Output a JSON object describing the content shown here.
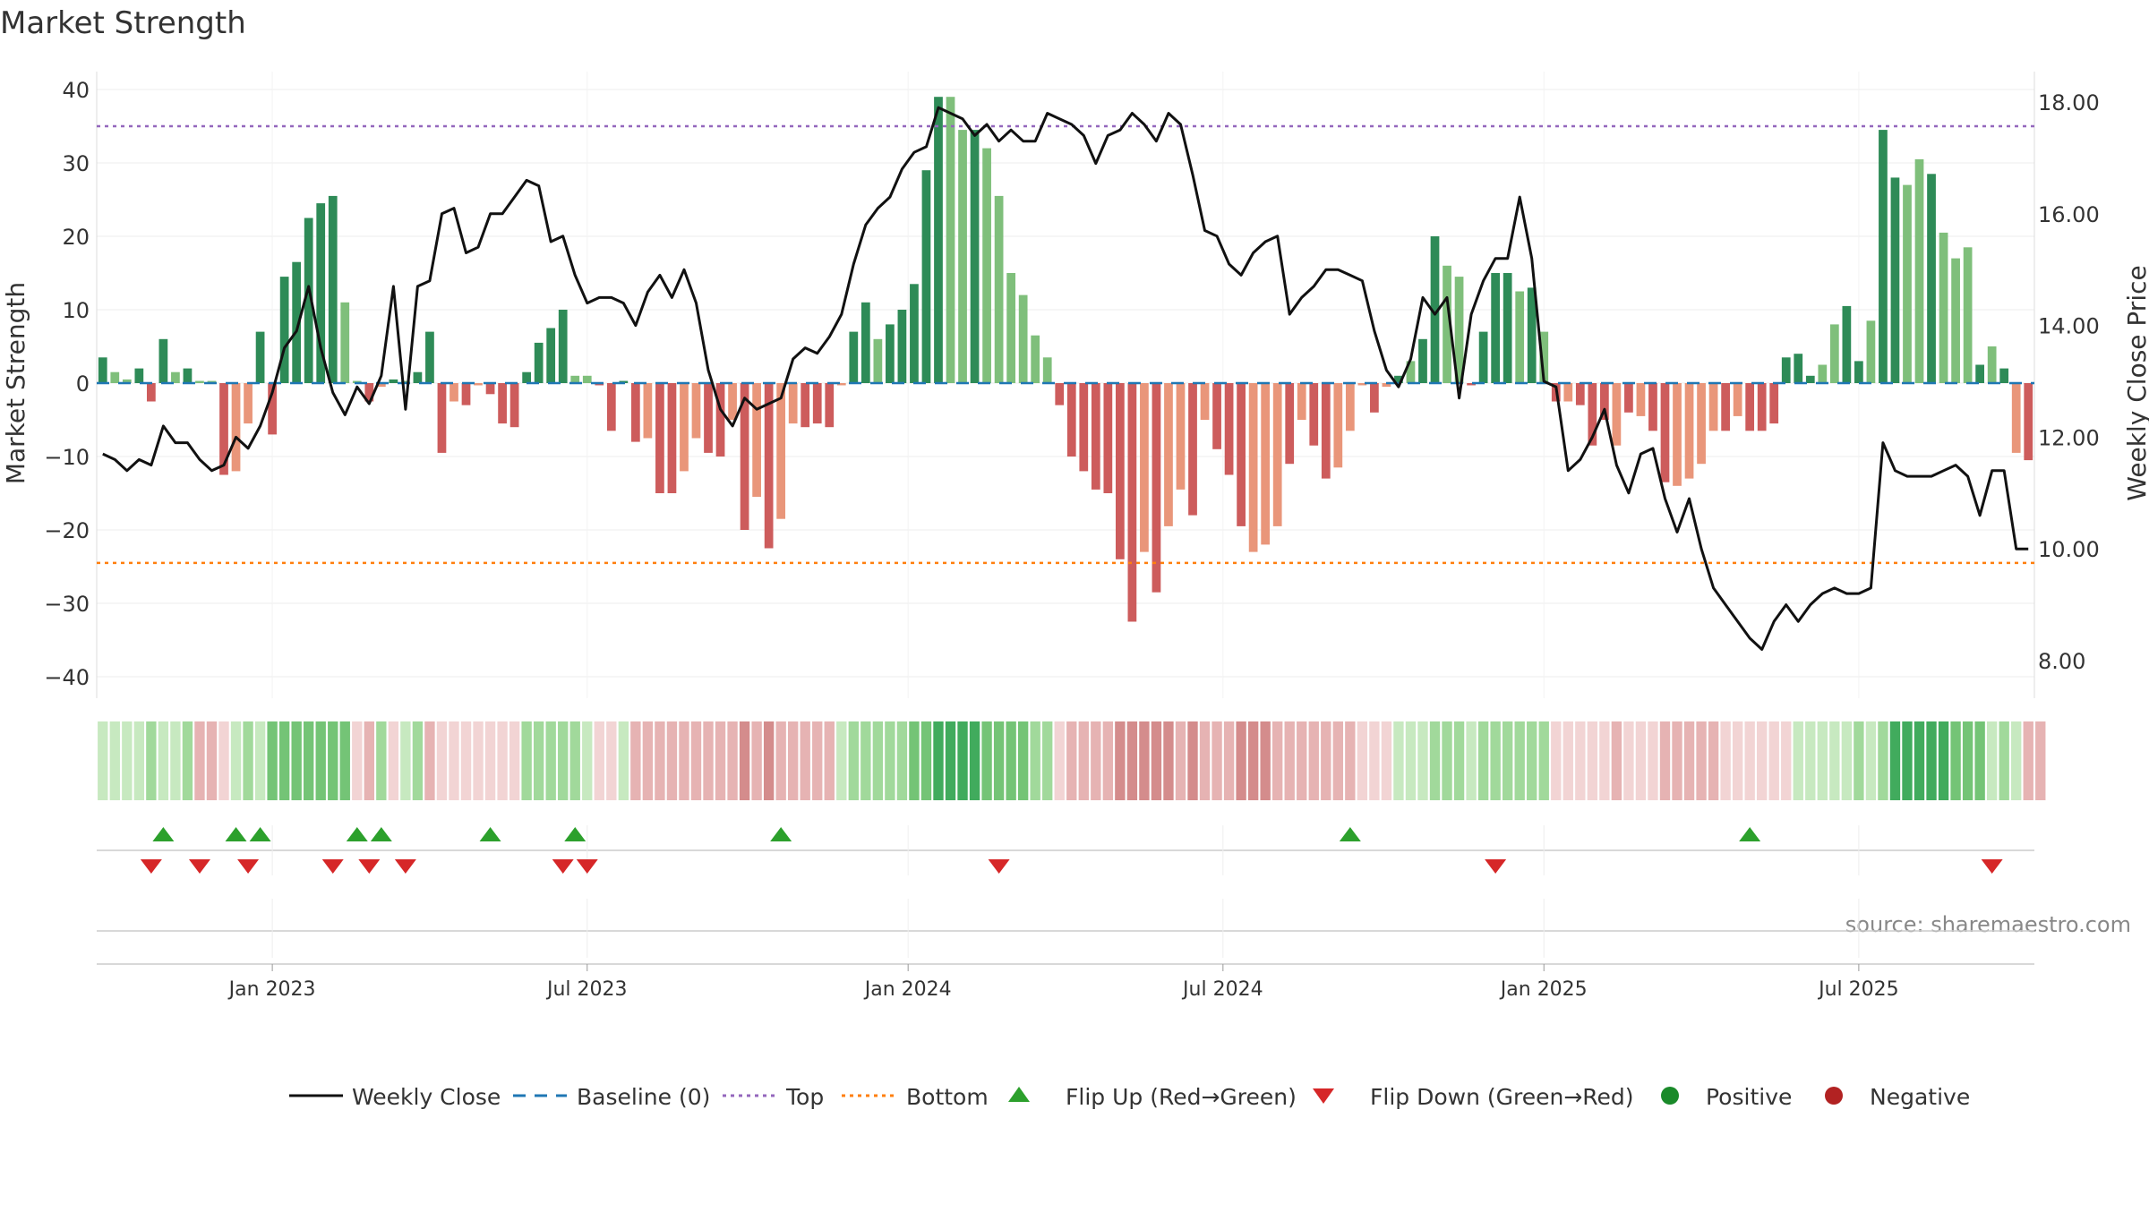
{
  "chart_data": {
    "type": "bar",
    "title": "Market Strength",
    "ylabel_left": "Market Strength",
    "ylabel_right": "Weekly Close Price",
    "ylim_left": [
      -44,
      42
    ],
    "ylim_right": [
      7.0,
      18.6
    ],
    "yticks_left": [
      "40",
      "30",
      "20",
      "10",
      "0",
      "−10",
      "−20",
      "−30",
      "−40"
    ],
    "yticks_left_values": [
      40,
      30,
      20,
      10,
      0,
      -10,
      -20,
      -30,
      -40
    ],
    "yticks_right": [
      "18.00",
      "16.00",
      "14.00",
      "12.00",
      "10.00",
      "8.00"
    ],
    "yticks_right_values": [
      18,
      16,
      14,
      12,
      10,
      8
    ],
    "x_tick_labels": [
      "Jan 2023",
      "Jul 2023",
      "Jan 2024",
      "Jul 2024",
      "Jan 2025",
      "Jul 2025"
    ],
    "x_tick_weeks": [
      14.5,
      40.5,
      67,
      93,
      119.5,
      145.5
    ],
    "top_line": 35,
    "bottom_line": -24.5,
    "source": "source: sharemaestro.com",
    "legend": [
      "Weekly Close",
      "Baseline (0)",
      "Top",
      "Bottom",
      "Flip Up (Red→Green)",
      "Flip Down (Green→Red)",
      "Positive",
      "Negative"
    ],
    "colors": {
      "dark_green": "#2e8b57",
      "light_green": "#7fbf7b",
      "dark_red": "#cd5c5c",
      "light_red": "#e9967a",
      "price_line": "#111111",
      "baseline": "#1f77b4",
      "top": "#9467bd",
      "bottom": "#ff7f0e",
      "flip_up": "#2ca02c",
      "flip_down": "#d62728",
      "positive": "#1a8a2a",
      "negative": "#b22222"
    },
    "strength": [
      3.5,
      1.5,
      0.5,
      2,
      -2.5,
      6,
      1.5,
      2,
      0.3,
      0.3,
      -12.5,
      -12,
      -5.5,
      7,
      -7,
      14.5,
      16.5,
      22.5,
      24.5,
      25.5,
      11,
      0.3,
      -2.5,
      -0.5,
      0.5,
      0.3,
      1.5,
      7,
      -9.5,
      -2.5,
      -3,
      -0.3,
      -1.5,
      -5.5,
      -6,
      1.5,
      5.5,
      7.5,
      10,
      1,
      1,
      -0.3,
      -6.5,
      0.3,
      -8,
      -7.5,
      -15,
      -15,
      -12,
      -7.5,
      -9.5,
      -10,
      -5,
      -20,
      -15.5,
      -22.5,
      -18.5,
      -5.5,
      -6,
      -5.5,
      -6,
      -0.3,
      7,
      11,
      6,
      8,
      10,
      13.5,
      29,
      39,
      39,
      34.5,
      34.5,
      32,
      25.5,
      15,
      12,
      6.5,
      3.5,
      -3,
      -10,
      -12,
      -14.5,
      -15,
      -24,
      -32.5,
      -23,
      -28.5,
      -19.5,
      -14.5,
      -18,
      -5,
      -9,
      -12.5,
      -19.5,
      -23,
      -22,
      -19.5,
      -11,
      -5,
      -8.5,
      -13,
      -11.5,
      -6.5,
      -0.3,
      -4,
      -0.5,
      1,
      3,
      6,
      20,
      16,
      14.5,
      -0.3,
      7,
      15,
      15,
      12.5,
      13,
      7,
      -2.5,
      -2.5,
      -3,
      -8.5,
      -5,
      -8.5,
      -4,
      -4.5,
      -6.5,
      -13.5,
      -14,
      -13,
      -11,
      -6.5,
      -6.5,
      -4.5,
      -6.5,
      -6.5,
      -5.5,
      3.5,
      4,
      1,
      2.5,
      8,
      10.5,
      3,
      8.5,
      34.5,
      28,
      27,
      30.5,
      28.5,
      20.5,
      17,
      18.5,
      2.5,
      5,
      2,
      -9.5,
      -10.5
    ],
    "strength_shade": [
      "d",
      "l",
      "l",
      "d",
      "d",
      "d",
      "l",
      "d",
      "l",
      "l",
      "d",
      "l",
      "l",
      "d",
      "d",
      "d",
      "d",
      "d",
      "d",
      "d",
      "l",
      "l",
      "d",
      "l",
      "d",
      "l",
      "d",
      "d",
      "d",
      "l",
      "d",
      "l",
      "d",
      "d",
      "d",
      "d",
      "d",
      "d",
      "d",
      "l",
      "l",
      "d",
      "d",
      "d",
      "d",
      "l",
      "d",
      "d",
      "l",
      "l",
      "d",
      "d",
      "l",
      "d",
      "l",
      "d",
      "l",
      "l",
      "d",
      "d",
      "d",
      "l",
      "d",
      "d",
      "l",
      "d",
      "d",
      "d",
      "d",
      "d",
      "l",
      "l",
      "d",
      "l",
      "l",
      "l",
      "l",
      "l",
      "l",
      "d",
      "d",
      "d",
      "d",
      "d",
      "d",
      "d",
      "l",
      "d",
      "l",
      "l",
      "d",
      "l",
      "d",
      "d",
      "d",
      "l",
      "l",
      "l",
      "d",
      "l",
      "d",
      "d",
      "l",
      "l",
      "l",
      "d",
      "l",
      "d",
      "l",
      "d",
      "d",
      "l",
      "l",
      "d",
      "d",
      "d",
      "d",
      "l",
      "d",
      "l",
      "d",
      "l",
      "d",
      "d",
      "d",
      "l",
      "d",
      "l",
      "d",
      "d",
      "l",
      "l",
      "l",
      "l",
      "d",
      "l",
      "d",
      "d",
      "d",
      "d",
      "d",
      "d",
      "l",
      "l",
      "d",
      "d",
      "l",
      "d",
      "d",
      "l",
      "l",
      "d",
      "l",
      "l",
      "l",
      "d",
      "l",
      "d",
      "l",
      "d",
      "d"
    ],
    "weekly_close": [
      11.7,
      11.6,
      11.4,
      11.6,
      11.5,
      12.2,
      11.9,
      11.9,
      11.6,
      11.4,
      11.5,
      12.0,
      11.8,
      12.2,
      12.8,
      13.6,
      13.9,
      14.7,
      13.6,
      12.8,
      12.4,
      12.9,
      12.6,
      13.1,
      14.7,
      12.5,
      14.7,
      14.8,
      16.0,
      16.1,
      15.3,
      15.4,
      16.0,
      16.0,
      16.3,
      16.6,
      16.5,
      15.5,
      15.6,
      14.9,
      14.4,
      14.5,
      14.5,
      14.4,
      14.0,
      14.6,
      14.9,
      14.5,
      15.0,
      14.4,
      13.2,
      12.5,
      12.2,
      12.7,
      12.5,
      12.6,
      12.7,
      13.4,
      13.6,
      13.5,
      13.8,
      14.2,
      15.1,
      15.8,
      16.1,
      16.3,
      16.8,
      17.1,
      17.2,
      17.9,
      17.8,
      17.7,
      17.4,
      17.6,
      17.3,
      17.5,
      17.3,
      17.3,
      17.8,
      17.7,
      17.6,
      17.4,
      16.9,
      17.4,
      17.5,
      17.8,
      17.6,
      17.3,
      17.8,
      17.6,
      16.7,
      15.7,
      15.6,
      15.1,
      14.9,
      15.3,
      15.5,
      15.6,
      14.2,
      14.5,
      14.7,
      15.0,
      15.0,
      14.9,
      14.8,
      13.9,
      13.2,
      12.9,
      13.4,
      14.5,
      14.2,
      14.5,
      12.7,
      14.2,
      14.8,
      15.2,
      15.2,
      16.3,
      15.2,
      13.0,
      12.9,
      11.4,
      11.6,
      12.0,
      12.5,
      11.5,
      11.0,
      11.7,
      11.8,
      10.9,
      10.3,
      10.9,
      10.0,
      9.3,
      9.0,
      8.7,
      8.4,
      8.2,
      8.7,
      9.0,
      8.7,
      9.0,
      9.2,
      9.3,
      9.2,
      9.2,
      9.3,
      11.9,
      11.4,
      11.3,
      11.3,
      11.3,
      11.4,
      11.5,
      11.3,
      10.6,
      11.4,
      11.4,
      10.0,
      10.0
    ],
    "flip_up_weeks": [
      5,
      11,
      13,
      21,
      23,
      32,
      39,
      56,
      103,
      136
    ],
    "flip_down_weeks": [
      4,
      8,
      12,
      19,
      22,
      25,
      38,
      40,
      74,
      115,
      156
    ],
    "heat_strip": [
      1,
      1,
      1,
      1,
      2,
      1,
      1,
      2,
      -2,
      -2,
      -1,
      1,
      2,
      1,
      3,
      3,
      3,
      3,
      3,
      3,
      3,
      -1,
      -2,
      2,
      -1,
      1,
      2,
      -2,
      -1,
      -1,
      -1,
      -1,
      -1,
      -1,
      -1,
      2,
      2,
      2,
      2,
      2,
      1,
      -1,
      -1,
      1,
      -2,
      -2,
      -2,
      -2,
      -2,
      -2,
      -2,
      -2,
      -2,
      -3,
      -2,
      -3,
      -2,
      -2,
      -2,
      -2,
      -2,
      1,
      2,
      2,
      2,
      2,
      2,
      3,
      3,
      4,
      4,
      4,
      4,
      3,
      3,
      3,
      3,
      2,
      2,
      -1,
      -2,
      -2,
      -2,
      -2,
      -3,
      -3,
      -3,
      -3,
      -3,
      -2,
      -3,
      -2,
      -2,
      -2,
      -3,
      -3,
      -3,
      -2,
      -2,
      -2,
      -2,
      -2,
      -2,
      -2,
      -1,
      -1,
      -1,
      1,
      1,
      1,
      2,
      2,
      2,
      1,
      2,
      2,
      2,
      2,
      2,
      2,
      -1,
      -1,
      -1,
      -1,
      -1,
      -2,
      -1,
      -1,
      -1,
      -2,
      -2,
      -2,
      -2,
      -2,
      -1,
      -1,
      -1,
      -1,
      -1,
      -1,
      1,
      1,
      1,
      1,
      1,
      2,
      1,
      2,
      4,
      4,
      4,
      4,
      4,
      3,
      3,
      3,
      1,
      2,
      1,
      -2,
      -2
    ]
  }
}
